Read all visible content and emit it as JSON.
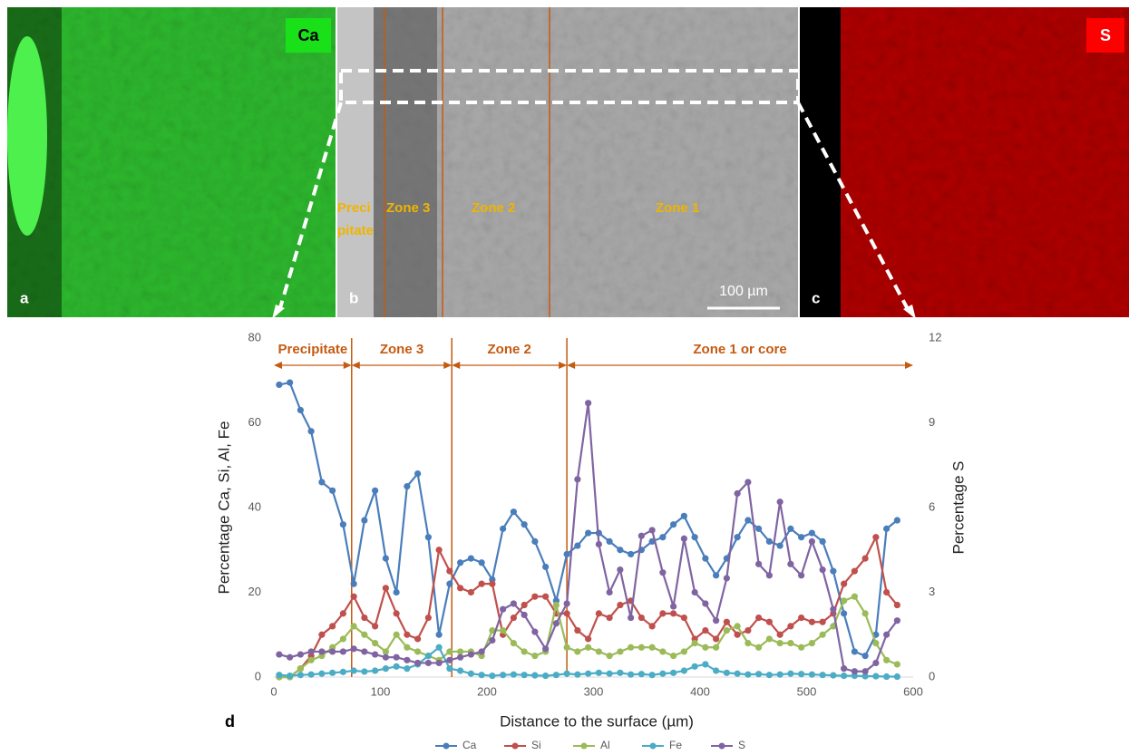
{
  "panels": [
    {
      "label": "a",
      "element": "Ca"
    },
    {
      "label": "b"
    },
    {
      "label": "c",
      "element": "S"
    }
  ],
  "image_zones": [
    "Preci",
    "pitate",
    "Zone 3",
    "Zone 2",
    "Zone 1"
  ],
  "scale_bar": "100 µm",
  "chart_data": {
    "type": "line",
    "label": "d",
    "xlabel": "Distance to the surface (µm)",
    "ylabel": "Percentage Ca, Si, Al, Fe",
    "y2label": "Percentage S",
    "x": [
      5,
      15,
      25,
      35,
      45,
      55,
      65,
      75,
      85,
      95,
      105,
      115,
      125,
      135,
      145,
      155,
      165,
      175,
      185,
      195,
      205,
      215,
      225,
      235,
      245,
      255,
      265,
      275,
      285,
      295,
      305,
      315,
      325,
      335,
      345,
      355,
      365,
      375,
      385,
      395,
      405,
      415,
      425,
      435,
      445,
      455,
      465,
      475,
      485,
      495,
      505,
      515,
      525,
      535,
      545,
      555,
      565,
      575,
      585
    ],
    "series": [
      {
        "name": "Ca",
        "color": "#4a7ebb",
        "values": [
          69,
          69.5,
          63,
          58,
          46,
          44,
          36,
          22,
          37,
          44,
          28,
          20,
          45,
          48,
          33,
          10,
          22,
          27,
          28,
          27,
          23,
          35,
          39,
          36,
          32,
          26,
          18,
          29,
          31,
          34,
          34,
          32,
          30,
          29,
          30,
          32,
          33,
          36,
          38,
          33,
          28,
          24,
          28,
          33,
          37,
          35,
          32,
          31,
          35,
          33,
          34,
          32,
          25,
          15,
          6,
          5,
          10,
          35,
          37
        ]
      },
      {
        "name": "Si",
        "color": "#c0504d",
        "values": [
          0,
          0,
          2,
          5,
          10,
          12,
          15,
          19,
          14,
          12,
          21,
          15,
          10,
          9,
          14,
          30,
          25,
          21,
          20,
          22,
          22,
          10,
          14,
          17,
          19,
          19,
          15,
          15,
          11,
          9,
          15,
          14,
          17,
          18,
          14,
          12,
          15,
          15,
          14,
          9,
          11,
          9,
          13,
          10,
          11,
          14,
          13,
          10,
          12,
          14,
          13,
          13,
          15,
          22,
          25,
          28,
          33,
          20,
          17
        ]
      },
      {
        "name": "Al",
        "color": "#9bbb59",
        "values": [
          0,
          0,
          2,
          4,
          5,
          7,
          9,
          12,
          10,
          8,
          6,
          10,
          7,
          6,
          5,
          4,
          6,
          6,
          6,
          5,
          11,
          11,
          8,
          6,
          5,
          6,
          17,
          7,
          6,
          7,
          6,
          5,
          6,
          7,
          7,
          7,
          6,
          5,
          6,
          8,
          7,
          7,
          11,
          12,
          8,
          7,
          9,
          8,
          8,
          7,
          8,
          10,
          12,
          18,
          19,
          15,
          8,
          4,
          3
        ]
      },
      {
        "name": "Fe",
        "color": "#4bacc6",
        "values": [
          0.5,
          0.3,
          0.5,
          0.6,
          0.8,
          1,
          1.2,
          1.5,
          1.3,
          1.5,
          2,
          2.5,
          2,
          3,
          5,
          7,
          2,
          1.5,
          0.8,
          0.5,
          0.3,
          0.5,
          0.6,
          0.5,
          0.4,
          0.3,
          0.5,
          0.8,
          0.6,
          0.8,
          1,
          0.8,
          1,
          0.6,
          0.7,
          0.5,
          0.8,
          1,
          1.5,
          2.5,
          3,
          1.5,
          1,
          0.8,
          0.6,
          0.7,
          0.5,
          0.6,
          0.8,
          0.7,
          0.6,
          0.5,
          0.4,
          0.3,
          0.3,
          0.2,
          0.2,
          0.1,
          0.1
        ]
      },
      {
        "name": "S",
        "color": "#8064a2",
        "axis": "y2",
        "values": [
          0.8,
          0.7,
          0.8,
          0.9,
          0.9,
          0.9,
          0.9,
          1.0,
          0.9,
          0.8,
          0.7,
          0.7,
          0.6,
          0.5,
          0.5,
          0.5,
          0.6,
          0.7,
          0.8,
          0.9,
          1.3,
          2.4,
          2.6,
          2.2,
          1.6,
          1.0,
          1.9,
          2.6,
          7,
          9.7,
          4.7,
          3.0,
          3.8,
          2.1,
          5.0,
          5.2,
          3.7,
          2.5,
          4.9,
          3.0,
          2.6,
          2.0,
          3.5,
          6.5,
          6.9,
          4.0,
          3.6,
          6.2,
          4.0,
          3.6,
          4.8,
          3.8,
          2.4,
          0.3,
          0.2,
          0.2,
          0.5,
          1.5,
          2.0
        ]
      }
    ],
    "xlim": [
      0,
      600
    ],
    "xticks": [
      0,
      100,
      200,
      300,
      400,
      500,
      600
    ],
    "ylim": [
      0,
      80
    ],
    "yticks": [
      0,
      20,
      40,
      60,
      80
    ],
    "y2lim": [
      0,
      12
    ],
    "y2ticks": [
      0,
      3,
      6,
      9,
      12
    ],
    "zones": [
      {
        "label": "Precipitate",
        "from": 0,
        "to": 73
      },
      {
        "label": "Zone 3",
        "from": 73,
        "to": 167
      },
      {
        "label": "Zone 2",
        "from": 167,
        "to": 275
      },
      {
        "label": "Zone 1 or core",
        "from": 275,
        "to": 600
      }
    ],
    "zone_color": "#c55a11",
    "legend": "bottom"
  }
}
